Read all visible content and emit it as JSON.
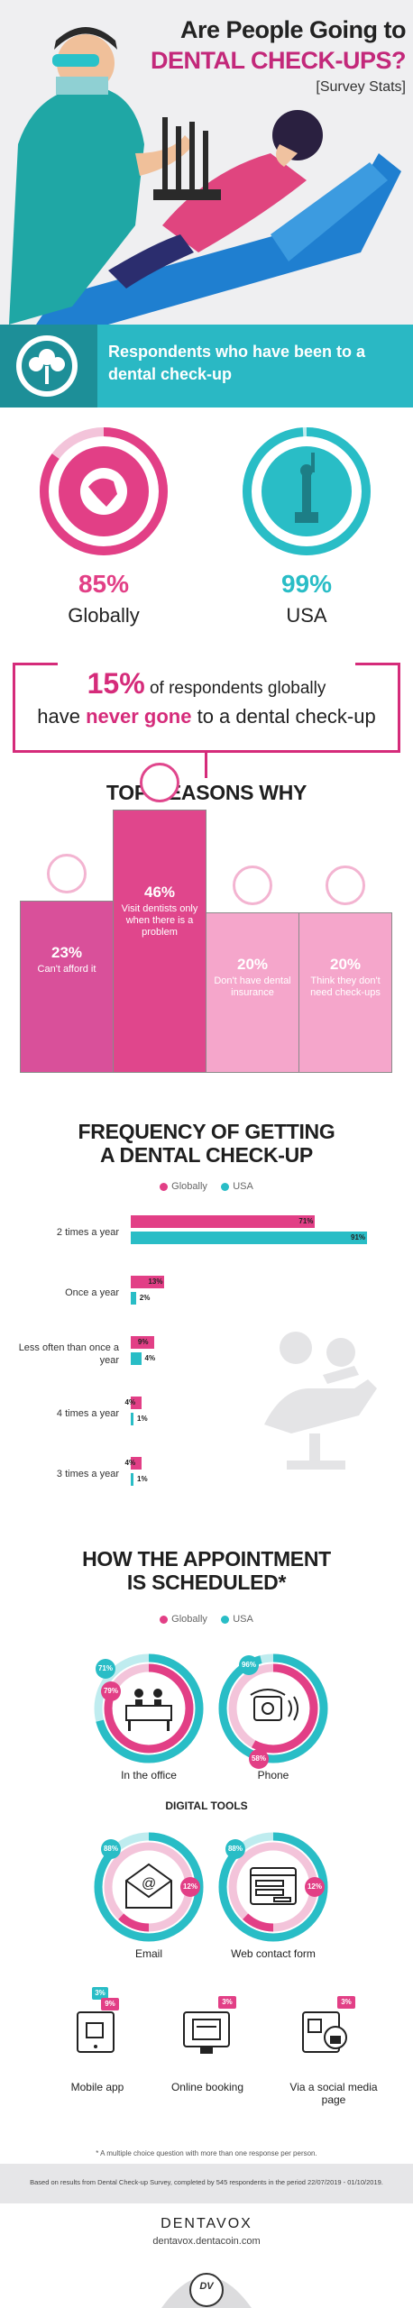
{
  "header": {
    "title_line1": "Are People Going to",
    "title_line2": "DENTAL CHECK-UPS?",
    "subtitle": "[Survey Stats]"
  },
  "banner": {
    "text": "Respondents who have been to a dental check-up"
  },
  "visited": {
    "globally": {
      "value": "85%",
      "label": "Globally",
      "fraction": 0.85
    },
    "usa": {
      "value": "99%",
      "label": "USA",
      "fraction": 0.99
    }
  },
  "never_gone": {
    "pct": "15%",
    "line1_rest": "of respondents globally",
    "line2_start": "have",
    "line2_emph": "never gone",
    "line2_end": "to a dental check-up"
  },
  "reasons": {
    "title": "TOP REASONS WHY",
    "items": [
      {
        "pct": "23%",
        "text": "Can't afford it",
        "value": 23,
        "color": "#d9509a"
      },
      {
        "pct": "46%",
        "text": "Visit dentists only when there is a problem",
        "value": 46,
        "color": "#e0468c"
      },
      {
        "pct": "20%",
        "text": "Don't have dental insurance",
        "value": 20,
        "color": "#f5a6cb"
      },
      {
        "pct": "20%",
        "text": "Think they don't need check-ups",
        "value": 20,
        "color": "#f5a6cb"
      }
    ]
  },
  "frequency": {
    "title_line1": "FREQUENCY OF GETTING",
    "title_line2": "A DENTAL CHECK-UP",
    "legend": {
      "global": "Globally",
      "usa": "USA"
    },
    "rows": [
      {
        "label": "2 times a year",
        "global": 71,
        "usa": 91,
        "global_txt": "71%",
        "usa_txt": "91%"
      },
      {
        "label": "Once a year",
        "global": 13,
        "usa": 2,
        "global_txt": "13%",
        "usa_txt": "2%"
      },
      {
        "label": "Less often than once a year",
        "global": 9,
        "usa": 4,
        "global_txt": "9%",
        "usa_txt": "4%"
      },
      {
        "label": "4 times a year",
        "global": 4,
        "usa": 1,
        "global_txt": "4%",
        "usa_txt": "1%"
      },
      {
        "label": "3 times a year",
        "global": 4,
        "usa": 1,
        "global_txt": "4%",
        "usa_txt": "1%"
      }
    ]
  },
  "schedule": {
    "title_line1": "HOW THE APPOINTMENT",
    "title_line2": "IS SCHEDULED*",
    "legend": {
      "global": "Globally",
      "usa": "USA"
    },
    "office": {
      "label": "In the office",
      "usa": "71%",
      "global": "79%",
      "usa_frac": 0.71,
      "global_frac": 0.79
    },
    "phone": {
      "label": "Phone",
      "usa": "96%",
      "global": "58%",
      "usa_frac": 0.96,
      "global_frac": 0.58
    },
    "digital_title": "DIGITAL TOOLS",
    "email": {
      "label": "Email",
      "usa": "88%",
      "global": "12%",
      "usa_frac": 0.88,
      "global_frac": 0.12
    },
    "webform": {
      "label": "Web contact form",
      "usa": "88%",
      "global": "12%",
      "usa_frac": 0.88,
      "global_frac": 0.12
    },
    "mobile": {
      "label": "Mobile app",
      "usa": "3%",
      "global": "9%"
    },
    "booking": {
      "label": "Online booking",
      "global": "3%"
    },
    "social": {
      "label": "Via a social media page",
      "global": "3%"
    },
    "footnote": "* A multiple choice question with more than one response per person."
  },
  "footer": {
    "note": "Based on results from Dental Check-up Survey, completed by 545 respondents in the period 22/07/2019 - 01/10/2019.",
    "brand": "DENTAVOX",
    "url": "dentavox.dentacoin.com",
    "logo_text": "DV"
  },
  "colors": {
    "pink": "#e23f86",
    "teal": "#29bdc6",
    "light_pink": "#f5a6cb"
  }
}
